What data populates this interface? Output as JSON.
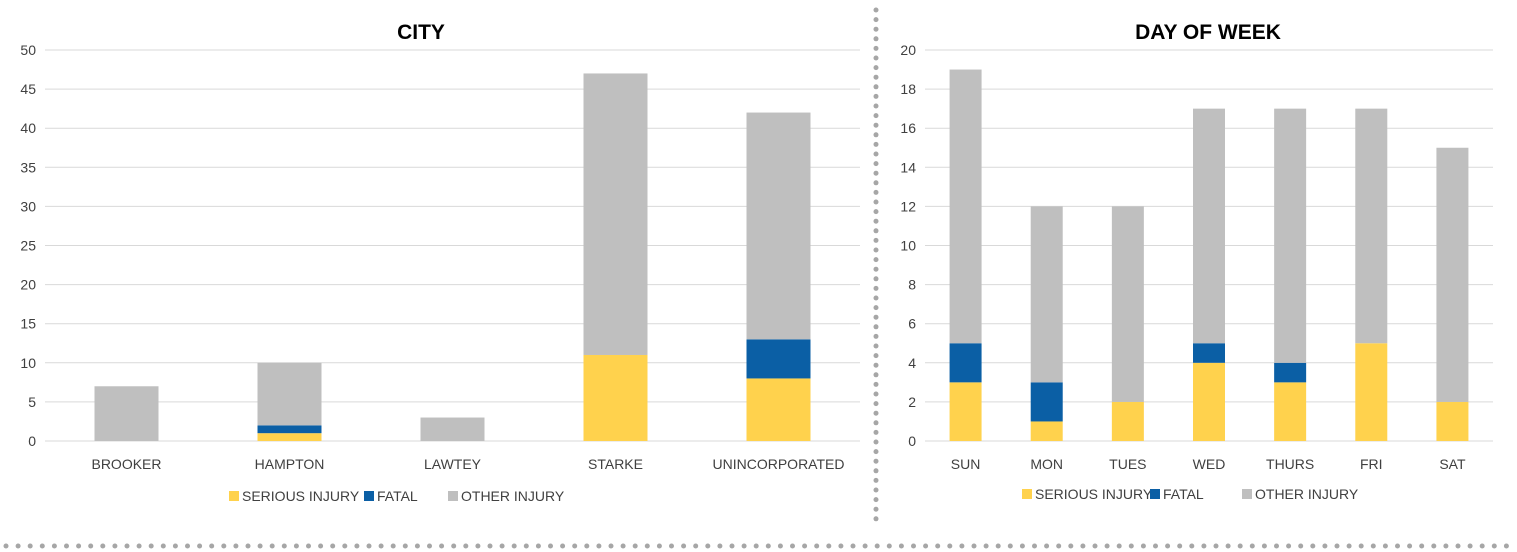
{
  "colors": {
    "serious_injury": "#FFD24D",
    "fatal": "#0B5FA5",
    "other_injury": "#BFBFBF",
    "gridline": "#D9D9D9",
    "divider_dots": "#A6A6A6"
  },
  "chart_data": [
    {
      "type": "bar",
      "stacked": true,
      "title": "CITY",
      "categories": [
        "BROOKER",
        "HAMPTON",
        "LAWTEY",
        "STARKE",
        "UNINCORPORATED"
      ],
      "series": [
        {
          "name": "SERIOUS INJURY",
          "color_key": "serious_injury",
          "values": [
            0,
            1,
            0,
            11,
            8
          ]
        },
        {
          "name": "FATAL",
          "color_key": "fatal",
          "values": [
            0,
            1,
            0,
            0,
            5
          ]
        },
        {
          "name": "OTHER INJURY",
          "color_key": "other_injury",
          "values": [
            7,
            8,
            3,
            36,
            29
          ]
        }
      ],
      "ylim": [
        0,
        50
      ],
      "yticks": [
        0,
        5,
        10,
        15,
        20,
        25,
        30,
        35,
        40,
        45,
        50
      ],
      "grid": true,
      "legend": "bottom",
      "xlabel": "",
      "ylabel": ""
    },
    {
      "type": "bar",
      "stacked": true,
      "title": "DAY OF WEEK",
      "categories": [
        "SUN",
        "MON",
        "TUES",
        "WED",
        "THURS",
        "FRI",
        "SAT"
      ],
      "series": [
        {
          "name": "SERIOUS INJURY",
          "color_key": "serious_injury",
          "values": [
            3,
            1,
            2,
            4,
            3,
            5,
            2
          ]
        },
        {
          "name": "FATAL",
          "color_key": "fatal",
          "values": [
            2,
            2,
            0,
            1,
            1,
            0,
            0
          ]
        },
        {
          "name": "OTHER INJURY",
          "color_key": "other_injury",
          "values": [
            14,
            9,
            10,
            12,
            13,
            12,
            13
          ]
        }
      ],
      "ylim": [
        0,
        20
      ],
      "yticks": [
        0,
        2,
        4,
        6,
        8,
        10,
        12,
        14,
        16,
        18,
        20
      ],
      "grid": true,
      "legend": "bottom",
      "xlabel": "",
      "ylabel": ""
    }
  ]
}
